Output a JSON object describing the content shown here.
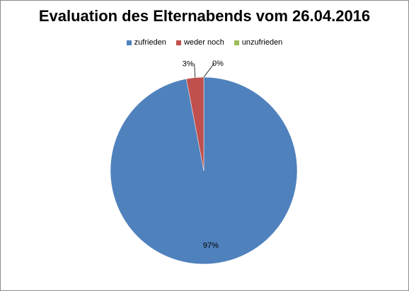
{
  "chart_data": {
    "type": "pie",
    "title": "Evaluation des Elternabends vom 26.04.2016",
    "categories": [
      "zufrieden",
      "weder noch",
      "unzufrieden"
    ],
    "values": [
      97,
      3,
      0
    ],
    "value_labels": [
      "97%",
      "3%",
      "0%"
    ],
    "colors": [
      "#4f81bd",
      "#c0504d",
      "#9bbb59"
    ],
    "legend_position": "top",
    "start_angle_deg": 0,
    "direction": "clockwise"
  }
}
